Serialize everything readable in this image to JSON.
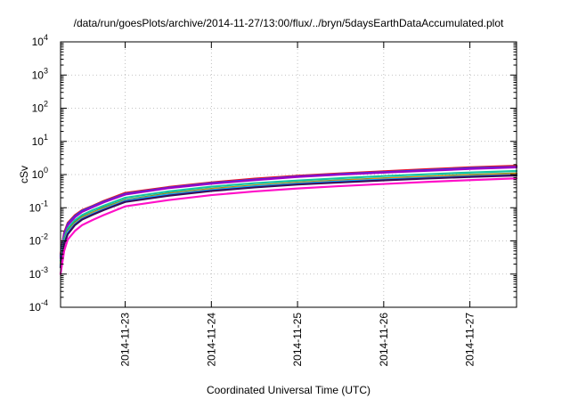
{
  "chart_data": {
    "type": "line",
    "title": "/data/run/goesPlots/archive/2014-11-27/13:00/flux/../bryn/5daysEarthDataAccumulated.plot",
    "xlabel": "Coordinated Universal Time (UTC)",
    "ylabel": "cSv",
    "x_scale": "time",
    "y_scale": "log",
    "xlim": [
      "2014-11-22 06:00",
      "2014-11-27 13:00"
    ],
    "ylim": [
      0.0001,
      10000
    ],
    "grid": true,
    "legend": "none",
    "x_ticks": [
      "2014-11-23",
      "2014-11-24",
      "2014-11-25",
      "2014-11-26",
      "2014-11-27"
    ],
    "y_ticks": [
      {
        "value": 0.0001,
        "base": "10",
        "exp": "-4"
      },
      {
        "value": 0.001,
        "base": "10",
        "exp": "-3"
      },
      {
        "value": 0.01,
        "base": "10",
        "exp": "-2"
      },
      {
        "value": 0.1,
        "base": "10",
        "exp": "-1"
      },
      {
        "value": 1,
        "base": "10",
        "exp": "0"
      },
      {
        "value": 10,
        "base": "10",
        "exp": "1"
      },
      {
        "value": 100,
        "base": "10",
        "exp": "2"
      },
      {
        "value": 1000,
        "base": "10",
        "exp": "3"
      },
      {
        "value": 10000,
        "base": "10",
        "exp": "4"
      }
    ],
    "x": [
      "2014-11-22 06:00",
      "2014-11-22 07:00",
      "2014-11-22 08:00",
      "2014-11-22 10:00",
      "2014-11-22 12:00",
      "2014-11-22 15:00",
      "2014-11-22 18:00",
      "2014-11-23 00:00",
      "2014-11-23 12:00",
      "2014-11-24 00:00",
      "2014-11-24 12:00",
      "2014-11-25 00:00",
      "2014-11-25 12:00",
      "2014-11-26 00:00",
      "2014-11-26 12:00",
      "2014-11-27 00:00",
      "2014-11-27 13:00"
    ],
    "series": [
      {
        "color": "#e8102c",
        "values": [
          0.004,
          0.018,
          0.035,
          0.06,
          0.085,
          0.115,
          0.16,
          0.28,
          0.42,
          0.58,
          0.75,
          0.92,
          1.08,
          1.25,
          1.45,
          1.65,
          1.85
        ]
      },
      {
        "color": "#0055ff",
        "values": [
          0.0035,
          0.016,
          0.032,
          0.055,
          0.08,
          0.11,
          0.15,
          0.26,
          0.4,
          0.55,
          0.7,
          0.87,
          1.03,
          1.18,
          1.35,
          1.55,
          1.7
        ]
      },
      {
        "color": "#9a00c8",
        "values": [
          0.003,
          0.015,
          0.03,
          0.052,
          0.075,
          0.105,
          0.145,
          0.25,
          0.39,
          0.53,
          0.68,
          0.85,
          1.0,
          1.15,
          1.3,
          1.48,
          1.65
        ]
      },
      {
        "color": "#15c4a0",
        "values": [
          0.0025,
          0.012,
          0.024,
          0.042,
          0.06,
          0.085,
          0.115,
          0.2,
          0.31,
          0.43,
          0.55,
          0.66,
          0.78,
          0.9,
          1.02,
          1.15,
          1.28
        ]
      },
      {
        "color": "#1a8a3a",
        "values": [
          0.002,
          0.01,
          0.02,
          0.036,
          0.052,
          0.072,
          0.1,
          0.17,
          0.27,
          0.37,
          0.47,
          0.57,
          0.67,
          0.77,
          0.87,
          0.98,
          1.08
        ]
      },
      {
        "color": "#ff8c00",
        "values": [
          0.002,
          0.0095,
          0.019,
          0.034,
          0.05,
          0.07,
          0.095,
          0.165,
          0.26,
          0.36,
          0.46,
          0.56,
          0.65,
          0.75,
          0.85,
          0.95,
          1.05
        ]
      },
      {
        "color": "#00aaff",
        "values": [
          0.0018,
          0.009,
          0.018,
          0.032,
          0.047,
          0.066,
          0.09,
          0.16,
          0.25,
          0.34,
          0.44,
          0.53,
          0.62,
          0.71,
          0.8,
          0.89,
          0.98
        ]
      },
      {
        "color": "#3a0a5a",
        "values": [
          0.0016,
          0.008,
          0.016,
          0.03,
          0.044,
          0.062,
          0.085,
          0.15,
          0.23,
          0.32,
          0.41,
          0.5,
          0.58,
          0.67,
          0.76,
          0.85,
          0.94
        ]
      },
      {
        "color": "#ff10c8",
        "values": [
          0.001,
          0.005,
          0.011,
          0.02,
          0.03,
          0.043,
          0.06,
          0.11,
          0.17,
          0.24,
          0.31,
          0.38,
          0.45,
          0.52,
          0.6,
          0.68,
          0.77
        ]
      }
    ]
  }
}
